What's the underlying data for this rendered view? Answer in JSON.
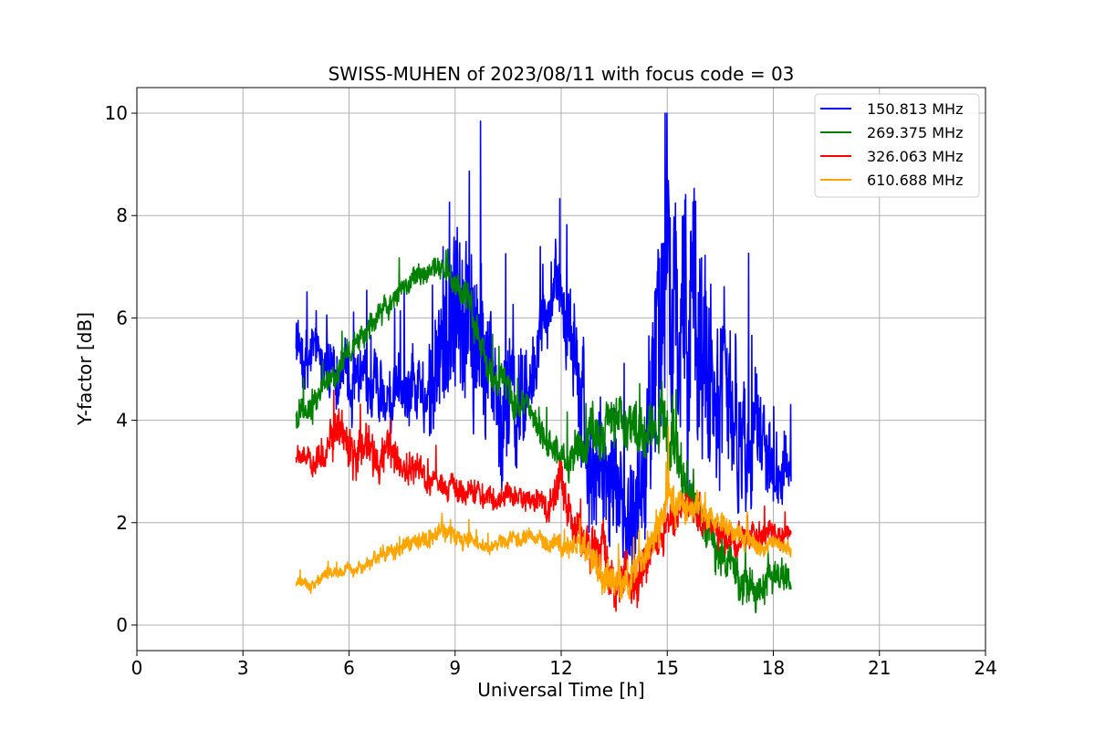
{
  "chart_data": {
    "type": "line",
    "title": "SWISS-MUHEN of 2023/08/11 with focus code = 03",
    "xlabel": "Universal Time [h]",
    "ylabel": "Y-factor [dB]",
    "xlim": [
      0,
      24
    ],
    "ylim": [
      -0.5,
      10.5
    ],
    "xticks": [
      0,
      3,
      6,
      9,
      12,
      15,
      18,
      21,
      24
    ],
    "yticks": [
      0,
      2,
      4,
      6,
      8,
      10
    ],
    "grid": true,
    "legend_position": "top-right",
    "series": [
      {
        "name": "150.813 MHz",
        "color": "#0000ff",
        "x": [
          4.5,
          5.0,
          5.5,
          6.0,
          6.5,
          7.0,
          7.5,
          8.0,
          8.5,
          9.0,
          9.5,
          10.0,
          10.5,
          11.0,
          11.5,
          12.0,
          12.5,
          13.0,
          13.5,
          14.0,
          14.5,
          15.0,
          15.5,
          16.0,
          16.5,
          17.0,
          17.5,
          18.0,
          18.5
        ],
        "values": [
          5.6,
          5.2,
          5.0,
          4.8,
          4.7,
          4.6,
          4.7,
          4.9,
          5.0,
          6.5,
          5.5,
          4.5,
          3.8,
          4.2,
          6.3,
          6.4,
          5.0,
          3.2,
          2.0,
          2.5,
          4.0,
          6.5,
          5.5,
          4.5,
          4.5,
          4.0,
          3.2,
          3.0,
          3.0
        ],
        "amplitude": [
          0.6,
          0.5,
          0.5,
          0.6,
          0.6,
          0.6,
          0.6,
          0.8,
          1.2,
          2.2,
          1.8,
          1.4,
          1.3,
          1.0,
          0.6,
          0.7,
          1.2,
          1.5,
          1.3,
          1.3,
          1.8,
          2.8,
          2.6,
          2.2,
          1.8,
          1.5,
          1.1,
          0.8,
          0.6
        ]
      },
      {
        "name": "269.375 MHz",
        "color": "#008000",
        "x": [
          4.5,
          5.0,
          5.5,
          6.0,
          6.5,
          7.0,
          7.5,
          8.0,
          8.5,
          9.0,
          9.5,
          10.0,
          10.5,
          11.0,
          11.5,
          12.0,
          12.5,
          13.0,
          13.5,
          14.0,
          14.5,
          15.0,
          15.5,
          16.0,
          16.5,
          17.0,
          17.5,
          18.0,
          18.5
        ],
        "values": [
          4.0,
          4.4,
          4.8,
          5.3,
          5.8,
          6.2,
          6.5,
          6.9,
          7.0,
          6.7,
          6.0,
          5.0,
          4.5,
          4.2,
          3.7,
          3.3,
          3.5,
          3.9,
          4.0,
          4.0,
          3.8,
          3.6,
          3.0,
          2.0,
          1.5,
          1.0,
          0.7,
          0.8,
          0.9
        ],
        "amplitude": [
          0.25,
          0.25,
          0.25,
          0.25,
          0.25,
          0.25,
          0.2,
          0.2,
          0.2,
          0.25,
          0.3,
          0.3,
          0.3,
          0.3,
          0.3,
          0.3,
          0.4,
          0.5,
          0.5,
          0.5,
          0.5,
          0.6,
          0.5,
          0.4,
          0.4,
          0.4,
          0.4,
          0.3,
          0.3
        ]
      },
      {
        "name": "326.063 MHz",
        "color": "#ff0000",
        "x": [
          4.5,
          5.0,
          5.5,
          6.0,
          6.5,
          7.0,
          7.5,
          8.0,
          8.5,
          9.0,
          9.5,
          10.0,
          10.5,
          11.0,
          11.5,
          12.0,
          12.5,
          13.0,
          13.5,
          14.0,
          14.5,
          15.0,
          15.5,
          16.0,
          16.5,
          17.0,
          17.5,
          18.0,
          18.5
        ],
        "values": [
          3.3,
          3.2,
          3.5,
          3.5,
          3.3,
          3.4,
          3.1,
          3.0,
          2.8,
          2.7,
          2.6,
          2.5,
          2.5,
          2.5,
          2.3,
          2.6,
          2.0,
          1.4,
          0.9,
          0.9,
          1.3,
          1.9,
          2.2,
          2.0,
          1.7,
          1.6,
          1.8,
          1.7,
          1.8
        ],
        "amplitude": [
          0.2,
          0.25,
          0.4,
          0.5,
          0.45,
          0.4,
          0.3,
          0.25,
          0.25,
          0.25,
          0.2,
          0.2,
          0.2,
          0.2,
          0.25,
          0.4,
          0.4,
          0.45,
          0.45,
          0.45,
          0.35,
          0.3,
          0.25,
          0.25,
          0.25,
          0.25,
          0.25,
          0.25,
          0.2
        ]
      },
      {
        "name": "610.688 MHz",
        "color": "#ffa500",
        "x": [
          4.5,
          5.0,
          5.5,
          6.0,
          6.5,
          7.0,
          7.5,
          8.0,
          8.5,
          9.0,
          9.5,
          10.0,
          10.5,
          11.0,
          11.5,
          12.0,
          12.5,
          13.0,
          13.5,
          14.0,
          14.5,
          15.0,
          15.5,
          16.0,
          16.5,
          17.0,
          17.5,
          18.0,
          18.5
        ],
        "values": [
          0.8,
          0.8,
          1.0,
          1.1,
          1.2,
          1.4,
          1.5,
          1.7,
          1.8,
          1.7,
          1.6,
          1.5,
          1.6,
          1.7,
          1.7,
          1.6,
          1.5,
          1.1,
          0.8,
          1.0,
          1.5,
          2.5,
          2.2,
          2.3,
          2.0,
          1.8,
          1.6,
          1.5,
          1.5
        ],
        "amplitude": [
          0.08,
          0.1,
          0.12,
          0.12,
          0.12,
          0.15,
          0.15,
          0.18,
          0.2,
          0.2,
          0.15,
          0.12,
          0.15,
          0.15,
          0.15,
          0.18,
          0.2,
          0.35,
          0.35,
          0.3,
          0.35,
          0.45,
          0.3,
          0.25,
          0.2,
          0.2,
          0.18,
          0.15,
          0.15
        ]
      }
    ]
  }
}
